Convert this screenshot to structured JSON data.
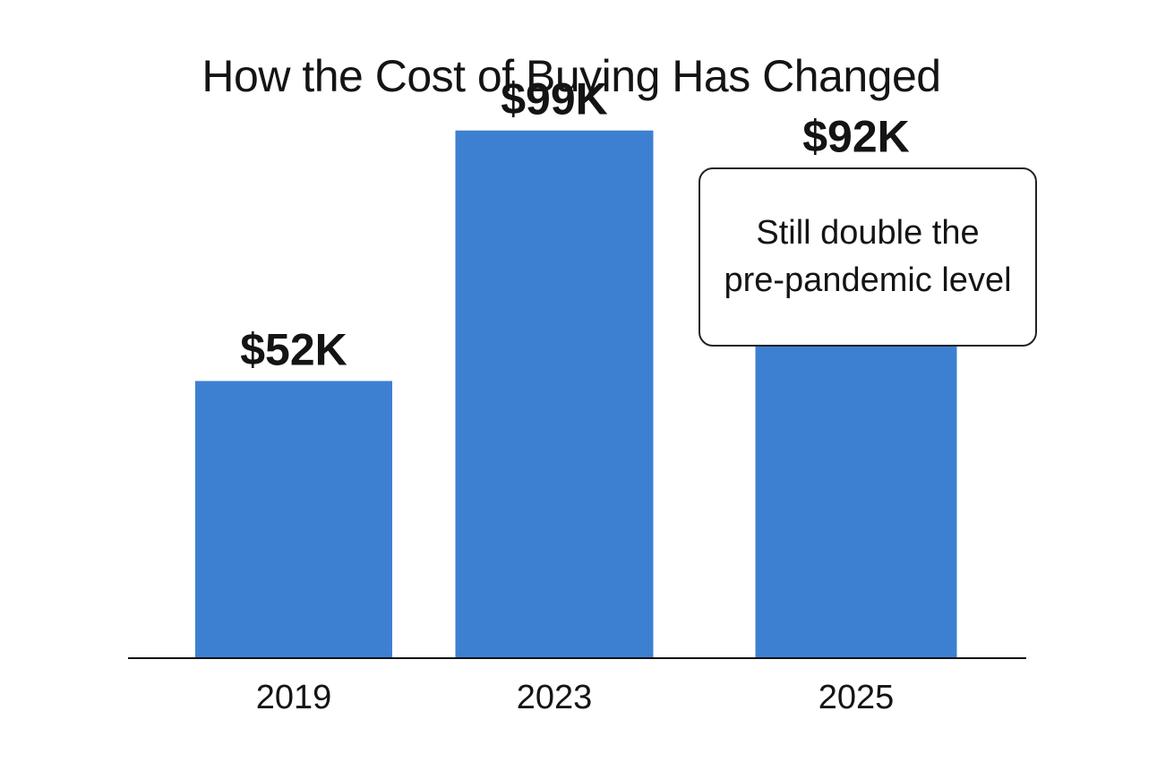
{
  "chart_data": {
    "type": "bar",
    "title": "How the Cost of Buying Has Changed",
    "xlabel": "",
    "ylabel": "",
    "categories": [
      "2019",
      "2023",
      "2025"
    ],
    "values": [
      52,
      99,
      92
    ],
    "value_labels": [
      "$52K",
      "$99K",
      "$92K"
    ],
    "unit": "$K",
    "ylim": [
      0,
      105
    ],
    "grid": false,
    "legend": "none",
    "bar_color": "#3d80d2",
    "annotation": {
      "text": "Still double the pre-pandemic level",
      "placement": "top-right",
      "near_category": "2025"
    }
  }
}
